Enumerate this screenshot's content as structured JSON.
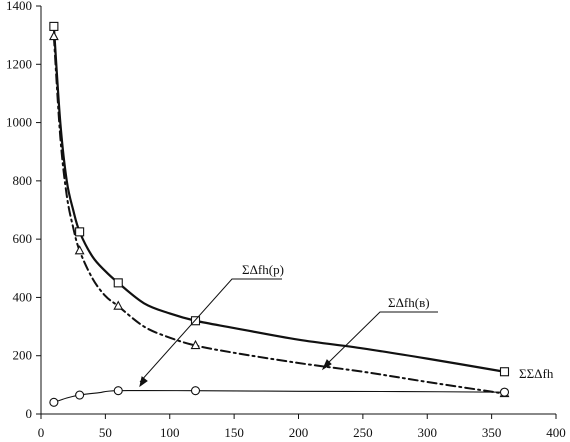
{
  "chart_data": {
    "type": "line",
    "title": "",
    "xlabel": "",
    "ylabel": "",
    "xlim": [
      0,
      400
    ],
    "ylim": [
      0,
      1400
    ],
    "xticks": [
      0,
      50,
      100,
      150,
      200,
      250,
      300,
      350,
      400
    ],
    "yticks": [
      0,
      200,
      400,
      600,
      800,
      1000,
      1200,
      1400
    ],
    "grid": false,
    "series": [
      {
        "label": "ΣΣΔfh",
        "style": "solid-thick",
        "marker": "square",
        "points": [
          [
            10,
            1330
          ],
          [
            30,
            625
          ],
          [
            60,
            450
          ],
          [
            120,
            320
          ],
          [
            360,
            145
          ]
        ],
        "curve": [
          [
            10,
            1330
          ],
          [
            15,
            1000
          ],
          [
            20,
            800
          ],
          [
            25,
            700
          ],
          [
            30,
            625
          ],
          [
            40,
            540
          ],
          [
            50,
            490
          ],
          [
            60,
            450
          ],
          [
            80,
            380
          ],
          [
            100,
            345
          ],
          [
            120,
            320
          ],
          [
            150,
            295
          ],
          [
            200,
            255
          ],
          [
            250,
            225
          ],
          [
            300,
            190
          ],
          [
            360,
            145
          ]
        ]
      },
      {
        "label": "ΣΔfh(в)",
        "style": "dash-dot",
        "marker": "triangle",
        "points": [
          [
            10,
            1295
          ],
          [
            30,
            560
          ],
          [
            60,
            370
          ],
          [
            120,
            235
          ],
          [
            360,
            70
          ]
        ],
        "curve": [
          [
            10,
            1295
          ],
          [
            15,
            950
          ],
          [
            20,
            750
          ],
          [
            25,
            640
          ],
          [
            30,
            560
          ],
          [
            40,
            465
          ],
          [
            50,
            405
          ],
          [
            60,
            370
          ],
          [
            80,
            300
          ],
          [
            100,
            262
          ],
          [
            120,
            235
          ],
          [
            150,
            210
          ],
          [
            200,
            175
          ],
          [
            250,
            145
          ],
          [
            300,
            110
          ],
          [
            360,
            70
          ]
        ]
      },
      {
        "label": "ΣΔfh(p)",
        "style": "solid-thin",
        "marker": "circle",
        "points": [
          [
            10,
            40
          ],
          [
            30,
            65
          ],
          [
            60,
            80
          ],
          [
            120,
            80
          ],
          [
            360,
            75
          ]
        ],
        "curve": [
          [
            10,
            40
          ],
          [
            20,
            55
          ],
          [
            30,
            65
          ],
          [
            45,
            73
          ],
          [
            60,
            80
          ],
          [
            120,
            80
          ],
          [
            200,
            78
          ],
          [
            280,
            77
          ],
          [
            360,
            75
          ]
        ]
      }
    ]
  }
}
